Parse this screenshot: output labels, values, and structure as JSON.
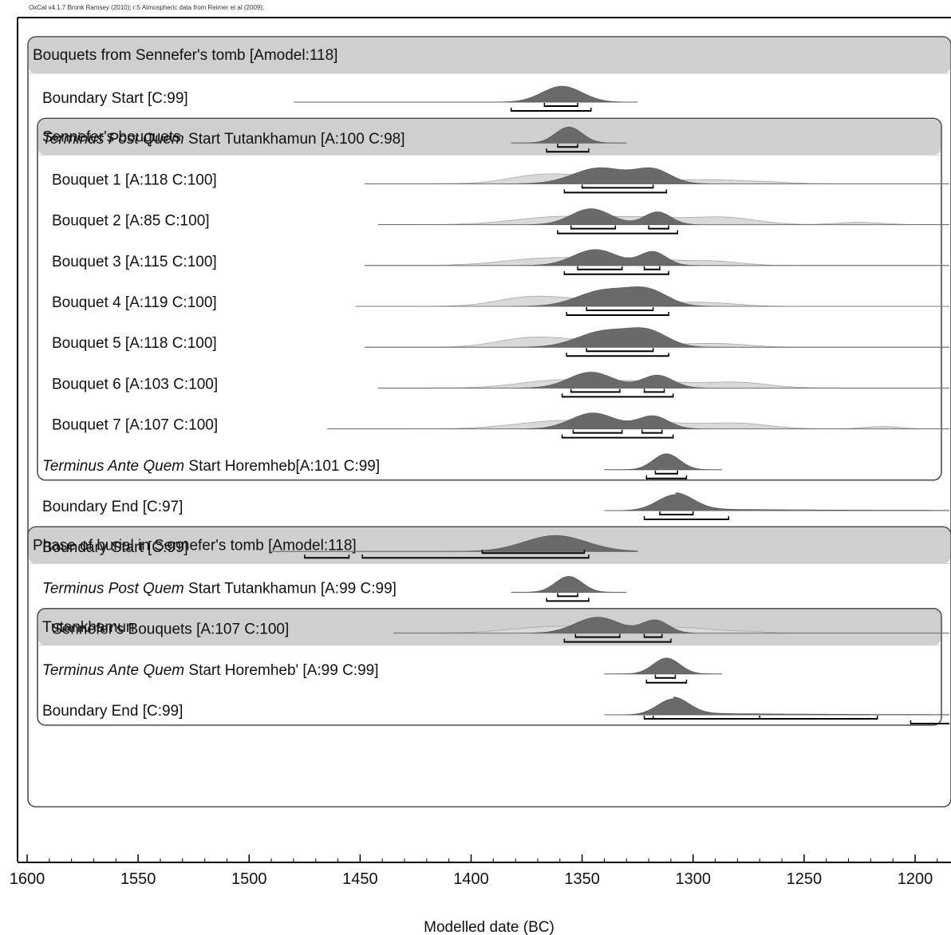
{
  "credit": "OxCal v4.1.7 Bronk Ramsey (2010); r:5 Atmospheric data from Reimer et al (2009);",
  "chart_data": {
    "type": "multiplot",
    "xlabel": "Modelled date (BC)",
    "xlim": [
      1600,
      1180
    ],
    "xticks": [
      1600,
      1550,
      1500,
      1450,
      1400,
      1350,
      1300,
      1250,
      1200
    ],
    "groups": [
      {
        "label": "Bouquets from Sennefer's tomb [Amodel:118]",
        "first_row": 0,
        "last_row": 11,
        "level": 0
      },
      {
        "label": "Sennefer's bouquets",
        "first_row": 2,
        "last_row": 9,
        "level": 1
      },
      {
        "label": "Phase of burial in Sennefer's tomb [Amodel:118]",
        "first_row": 12,
        "last_row": 17,
        "level": 0
      },
      {
        "label": "Tutankhamun",
        "first_row": 14,
        "last_row": 15,
        "level": 1
      }
    ],
    "rows": [
      {
        "level": 0,
        "it": "",
        "label": "Boundary Start [C:99]",
        "span": [
          1480,
          1325
        ],
        "peaks": [
          {
            "c": 1359,
            "w": 9,
            "h": 1
          }
        ],
        "ranges": [
          [
            1367,
            1352
          ],
          [
            1382,
            1346
          ]
        ]
      },
      {
        "level": 0,
        "it": "Terminus Post Quem",
        "label": " Start Tutankhamun [A:100 C:98]",
        "span": [
          1382,
          1330
        ],
        "peaks": [
          {
            "c": 1356,
            "w": 6,
            "h": 1
          }
        ],
        "ranges": [
          [
            1361,
            1352
          ],
          [
            1366,
            1347
          ]
        ]
      },
      {
        "level": 1,
        "it": "",
        "label": "Bouquet 1 [A:118 C:100]",
        "span": [
          1448,
          1180
        ],
        "prior": [
          {
            "c": 1370,
            "w": 14,
            "h": 0.55
          },
          {
            "c": 1340,
            "w": 22,
            "h": 0.6
          },
          {
            "c": 1290,
            "w": 14,
            "h": 0.3
          },
          {
            "c": 1265,
            "w": 10,
            "h": 0.12
          }
        ],
        "peaks": [
          {
            "c": 1342,
            "w": 12,
            "h": 1
          },
          {
            "c": 1318,
            "w": 8,
            "h": 0.85
          }
        ],
        "ranges": [
          [
            1350,
            1318
          ],
          [
            1358,
            1312
          ]
        ]
      },
      {
        "level": 1,
        "it": "",
        "label": "Bouquet 2 [A:85 C:100]",
        "span": [
          1442,
          1180
        ],
        "prior": [
          {
            "c": 1360,
            "w": 20,
            "h": 0.65
          },
          {
            "c": 1320,
            "w": 18,
            "h": 0.55
          },
          {
            "c": 1285,
            "w": 14,
            "h": 0.55
          },
          {
            "c": 1225,
            "w": 10,
            "h": 0.2
          }
        ],
        "peaks": [
          {
            "c": 1346,
            "w": 9,
            "h": 1
          },
          {
            "c": 1316,
            "w": 6,
            "h": 0.8
          }
        ],
        "ranges": [
          [
            1355,
            1335
          ],
          [
            1320,
            1311
          ],
          [
            1361,
            1307
          ]
        ]
      },
      {
        "level": 1,
        "it": "",
        "label": "Bouquet 3 [A:115 C:100]",
        "span": [
          1448,
          1180
        ],
        "prior": [
          {
            "c": 1365,
            "w": 20,
            "h": 0.6
          },
          {
            "c": 1325,
            "w": 18,
            "h": 0.55
          },
          {
            "c": 1290,
            "w": 12,
            "h": 0.3
          }
        ],
        "peaks": [
          {
            "c": 1344,
            "w": 10,
            "h": 1
          },
          {
            "c": 1318,
            "w": 6,
            "h": 0.85
          }
        ],
        "ranges": [
          [
            1352,
            1332
          ],
          [
            1322,
            1315
          ],
          [
            1358,
            1311
          ]
        ]
      },
      {
        "level": 1,
        "it": "",
        "label": "Bouquet 4 [A:119 C:100]",
        "span": [
          1452,
          1180
        ],
        "prior": [
          {
            "c": 1375,
            "w": 14,
            "h": 0.6
          },
          {
            "c": 1345,
            "w": 22,
            "h": 0.55
          },
          {
            "c": 1295,
            "w": 14,
            "h": 0.3
          }
        ],
        "peaks": [
          {
            "c": 1340,
            "w": 12,
            "h": 1
          },
          {
            "c": 1320,
            "w": 9,
            "h": 0.9
          }
        ],
        "ranges": [
          [
            1348,
            1318
          ],
          [
            1357,
            1311
          ]
        ]
      },
      {
        "level": 1,
        "it": "",
        "label": "Bouquet 5 [A:118 C:100]",
        "span": [
          1448,
          1180
        ],
        "prior": [
          {
            "c": 1375,
            "w": 14,
            "h": 0.6
          },
          {
            "c": 1345,
            "w": 22,
            "h": 0.55
          },
          {
            "c": 1290,
            "w": 14,
            "h": 0.3
          }
        ],
        "peaks": [
          {
            "c": 1340,
            "w": 12,
            "h": 1
          },
          {
            "c": 1320,
            "w": 9,
            "h": 0.9
          }
        ],
        "ranges": [
          [
            1348,
            1318
          ],
          [
            1357,
            1311
          ]
        ]
      },
      {
        "level": 1,
        "it": "",
        "label": "Bouquet 6 [A:103 C:100]",
        "span": [
          1442,
          1180
        ],
        "prior": [
          {
            "c": 1360,
            "w": 18,
            "h": 0.65
          },
          {
            "c": 1320,
            "w": 18,
            "h": 0.55
          },
          {
            "c": 1280,
            "w": 14,
            "h": 0.45
          }
        ],
        "peaks": [
          {
            "c": 1346,
            "w": 10,
            "h": 1
          },
          {
            "c": 1316,
            "w": 7,
            "h": 0.8
          }
        ],
        "ranges": [
          [
            1355,
            1333
          ],
          [
            1322,
            1313
          ],
          [
            1359,
            1309
          ]
        ]
      },
      {
        "level": 1,
        "it": "",
        "label": "Bouquet 7 [A:107 C:100]",
        "span": [
          1465,
          1180
        ],
        "prior": [
          {
            "c": 1360,
            "w": 20,
            "h": 0.65
          },
          {
            "c": 1320,
            "w": 18,
            "h": 0.55
          },
          {
            "c": 1280,
            "w": 14,
            "h": 0.45
          },
          {
            "c": 1215,
            "w": 8,
            "h": 0.2
          }
        ],
        "peaks": [
          {
            "c": 1345,
            "w": 10,
            "h": 1
          },
          {
            "c": 1318,
            "w": 7,
            "h": 0.8
          }
        ],
        "ranges": [
          [
            1354,
            1332
          ],
          [
            1323,
            1314
          ],
          [
            1359,
            1309
          ]
        ]
      },
      {
        "level": 0,
        "it": "Terminus Ante Quem",
        "label": " Start Horemheb[A:101 C:99]",
        "span": [
          1340,
          1287
        ],
        "peaks": [
          {
            "c": 1312,
            "w": 6,
            "h": 1
          }
        ],
        "ranges": [
          [
            1317,
            1307
          ],
          [
            1321,
            1303
          ]
        ]
      },
      {
        "level": 0,
        "it": "",
        "label": "Boundary End [C:97]",
        "span": [
          1340,
          1180
        ],
        "peaks": [
          {
            "c": 1308,
            "w": 8,
            "h": 1
          }
        ],
        "tail": true,
        "ranges": [
          [
            1315,
            1300
          ],
          [
            1322,
            1284
          ]
        ]
      },
      {
        "level": 0,
        "it": "",
        "label": "Boundary Start [C:99]",
        "span": [
          1490,
          1325
        ],
        "peaks": [
          {
            "c": 1362,
            "w": 14,
            "h": 1
          }
        ],
        "fronttail": true,
        "ranges": [
          [
            1395,
            1349
          ],
          [
            1475,
            1455
          ],
          [
            1449,
            1347
          ]
        ]
      },
      {
        "level": 0,
        "it": "Terminus Post Quem",
        "label": " Start Tutankhamun [A:99 C:99]",
        "span": [
          1382,
          1330
        ],
        "peaks": [
          {
            "c": 1356,
            "w": 6,
            "h": 1
          }
        ],
        "ranges": [
          [
            1361,
            1352
          ],
          [
            1366,
            1347
          ]
        ]
      },
      {
        "level": 1,
        "it": "",
        "label": "Sennefer's Bouquets [A:107 C:100]",
        "span": [
          1435,
          1180
        ],
        "prior": [
          {
            "c": 1365,
            "w": 18,
            "h": 0.5
          },
          {
            "c": 1330,
            "w": 16,
            "h": 0.55
          },
          {
            "c": 1300,
            "w": 12,
            "h": 0.35
          },
          {
            "c": 1275,
            "w": 8,
            "h": 0.12
          }
        ],
        "peaks": [
          {
            "c": 1343,
            "w": 10,
            "h": 1
          },
          {
            "c": 1317,
            "w": 6,
            "h": 0.8
          }
        ],
        "ranges": [
          [
            1353,
            1333
          ],
          [
            1322,
            1314
          ],
          [
            1358,
            1310
          ]
        ]
      },
      {
        "level": 0,
        "it": "Terminus Ante Quem",
        "label": " Start Horemheb' [A:99 C:99]",
        "span": [
          1340,
          1287
        ],
        "peaks": [
          {
            "c": 1312,
            "w": 6,
            "h": 1
          }
        ],
        "ranges": [
          [
            1317,
            1308
          ],
          [
            1321,
            1303
          ]
        ]
      },
      {
        "level": 0,
        "it": "",
        "label": "Boundary End [C:99]",
        "span": [
          1340,
          1180
        ],
        "peaks": [
          {
            "c": 1309,
            "w": 7,
            "h": 1
          }
        ],
        "tail": true,
        "ranges": [
          [
            1318,
            1270
          ],
          [
            1322,
            1217
          ],
          [
            1202,
            1180
          ]
        ]
      }
    ]
  }
}
